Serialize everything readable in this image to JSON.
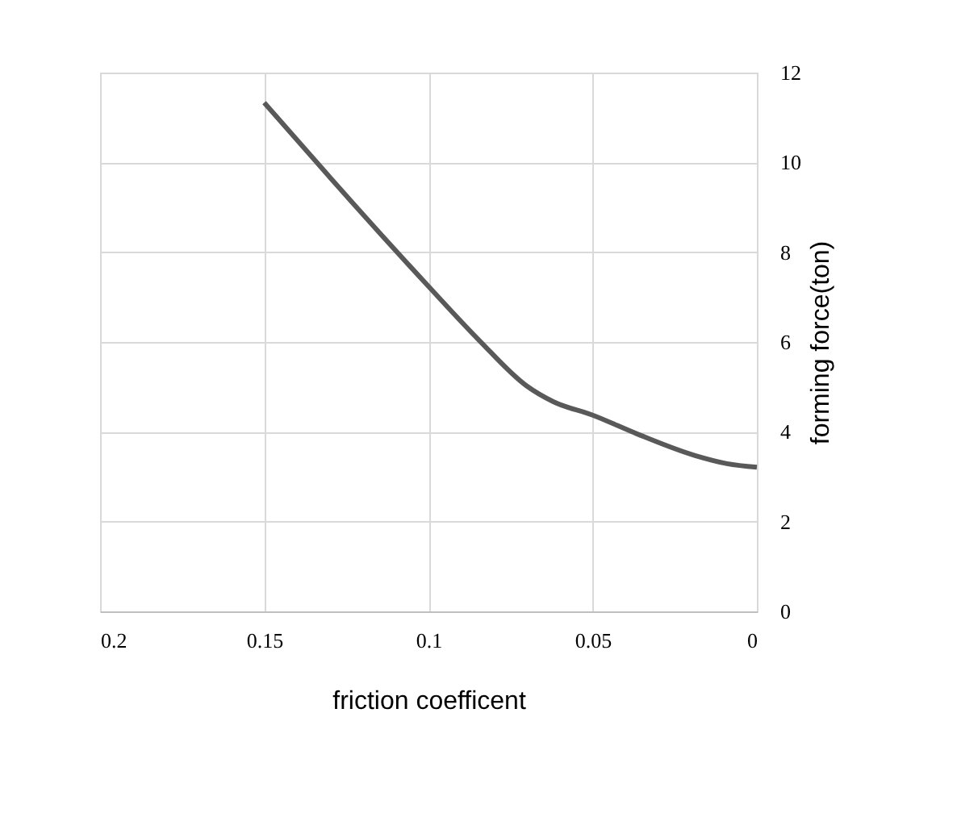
{
  "chart_data": {
    "type": "line",
    "xlabel": "friction coefficent",
    "ylabel": "forming force(ton)",
    "x": [
      0.15,
      0.131,
      0.123,
      0.1,
      0.0846,
      0.0701,
      0.062,
      0.05,
      0.0364,
      0.0188,
      0.0091,
      0
    ],
    "series": [
      {
        "color": "#595959",
        "values": [
          11.33,
          9.75,
          9.09,
          7.24,
          6.04,
          5.02,
          4.67,
          4.37,
          3.95,
          3.47,
          3.29,
          3.21
        ]
      }
    ],
    "xlim": [
      0.2,
      0
    ],
    "xticks": [
      0.2,
      0.15,
      0.1,
      0.05,
      0
    ],
    "ylim": [
      0,
      12
    ],
    "yticks": [
      0,
      2,
      4,
      6,
      8,
      10,
      12
    ],
    "grid": true,
    "marker": "none",
    "line_style": "solid"
  }
}
